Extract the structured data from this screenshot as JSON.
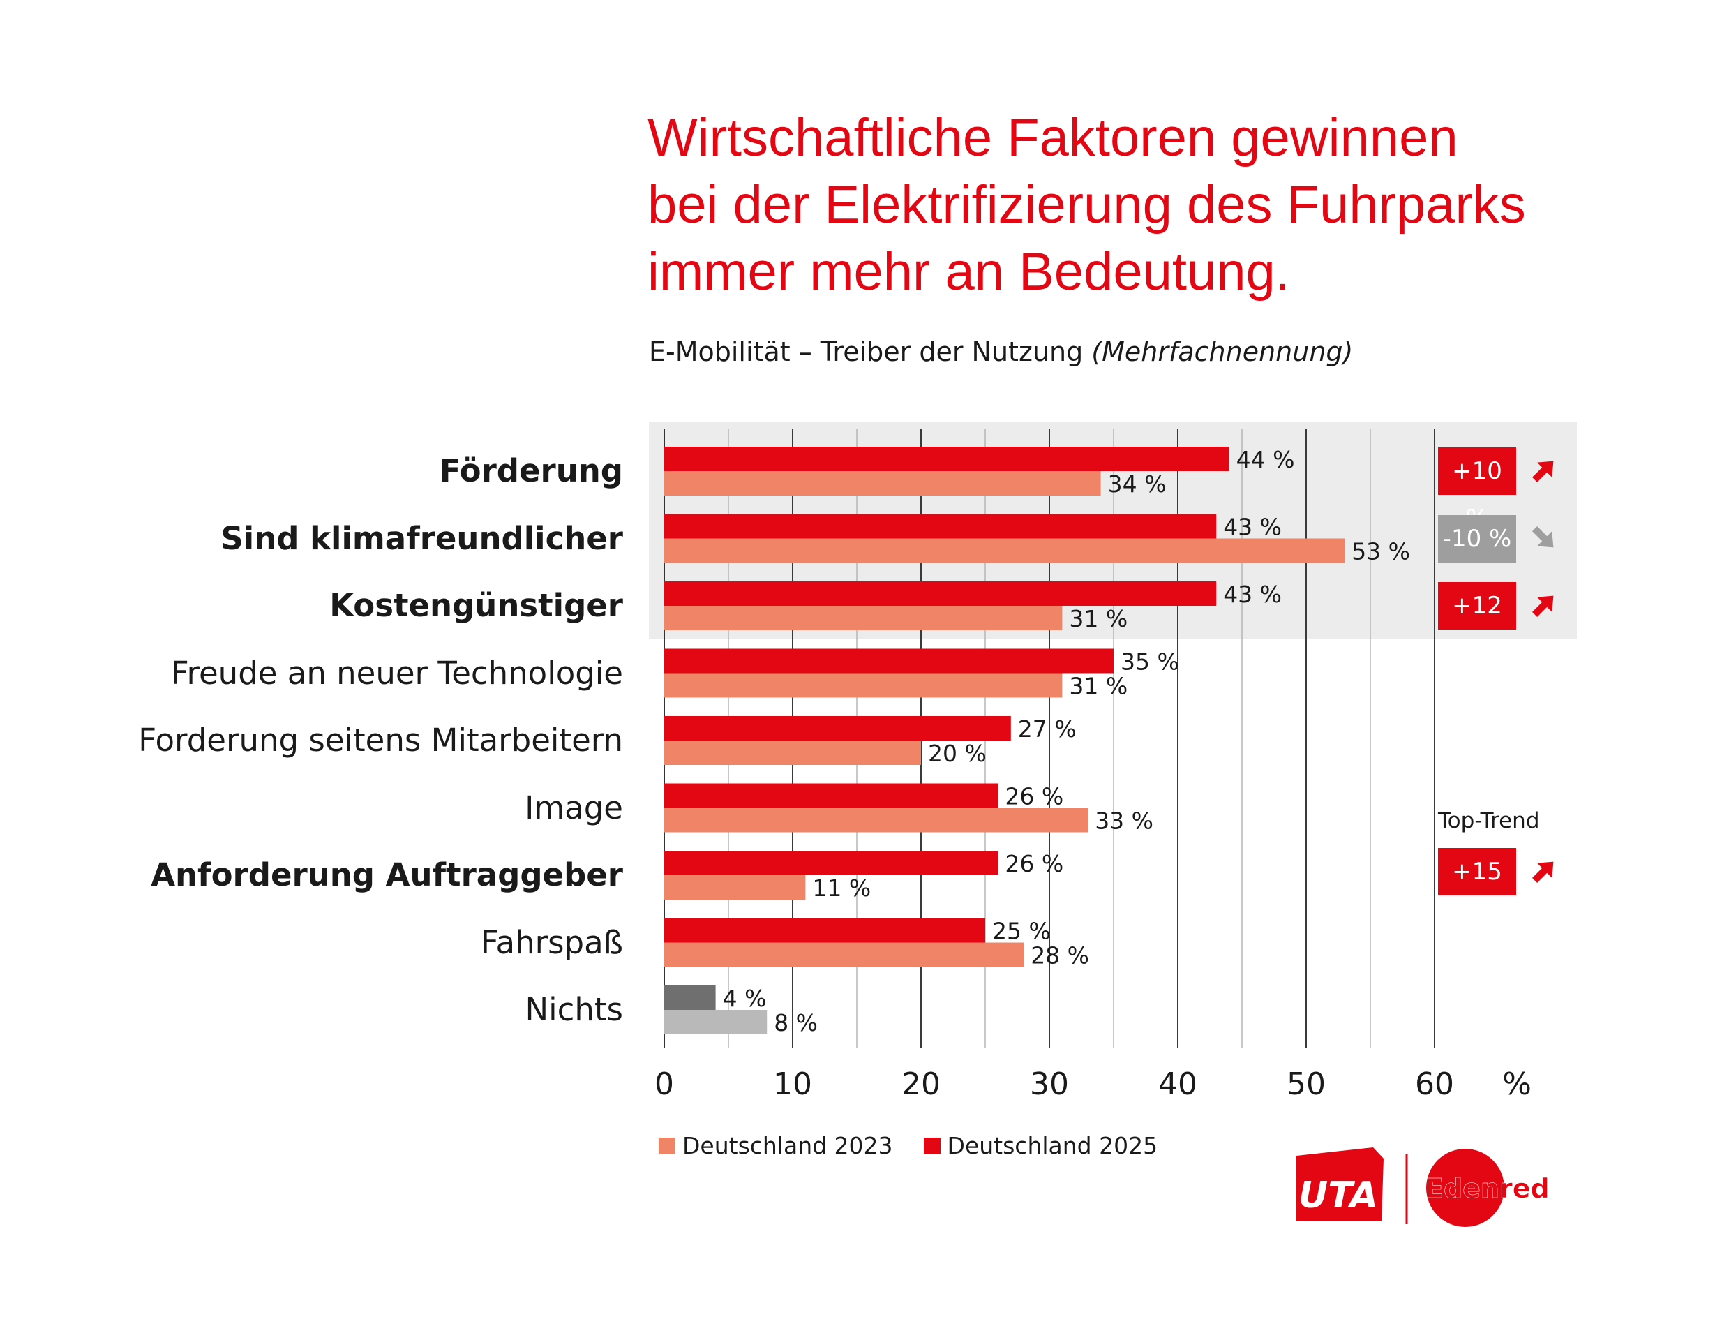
{
  "title_lines": [
    "Wirtschaftliche Faktoren gewinnen",
    "bei der Elektrifizierung des Fuhrparks",
    "immer mehr an Bedeutung."
  ],
  "subtitle": {
    "main": "E-Mobilität – Treiber der Nutzung ",
    "italic": "(Mehrfachnennung)"
  },
  "chart_data": {
    "type": "bar",
    "orientation": "horizontal",
    "categories": [
      "Förderung",
      "Sind klimafreundlicher",
      "Kostengünstiger",
      "Freude an neuer Technologie",
      "Forderung seitens Mitarbeitern",
      "Image",
      "Anforderung Auftraggeber",
      "Fahrspaß",
      "Nichts"
    ],
    "bold_categories": [
      "Förderung",
      "Sind klimafreundlicher",
      "Kostengünstiger",
      "Anforderung Auftraggeber"
    ],
    "highlighted_categories": [
      "Förderung",
      "Sind klimafreundlicher",
      "Kostengünstiger"
    ],
    "series": [
      {
        "name": "Deutschland 2025",
        "values": [
          44,
          43,
          43,
          35,
          27,
          26,
          26,
          25,
          4
        ],
        "color": "#e30613",
        "color_nichts": "#6f6f6f"
      },
      {
        "name": "Deutschland 2023",
        "values": [
          34,
          53,
          31,
          31,
          20,
          33,
          11,
          28,
          8
        ],
        "color": "#f08466",
        "color_nichts": "#b9b9b9"
      }
    ],
    "value_suffix": " %",
    "xlim": [
      0,
      60
    ],
    "xticks": [
      "0",
      "10",
      "20",
      "30",
      "40",
      "50",
      "60"
    ],
    "x_unit": "%",
    "grid": true,
    "legend_position": "bottom-left",
    "legend": [
      "Deutschland 2023",
      "Deutschland 2025"
    ]
  },
  "badges": [
    {
      "category": "Förderung",
      "text": "+10 %",
      "direction": "up",
      "color": "#e30613"
    },
    {
      "category": "Sind klimafreundlicher",
      "text": "-10 %",
      "direction": "down",
      "color": "#9e9e9e"
    },
    {
      "category": "Kostengünstiger",
      "text": "+12 %",
      "direction": "up",
      "color": "#e30613"
    }
  ],
  "top_trend": {
    "label": "Top-Trend",
    "text": "+15 %",
    "direction": "up",
    "color": "#e30613"
  },
  "colors": {
    "accent": "#e30613",
    "light": "#f08466",
    "highlight_bg": "#ececec",
    "grey_badge": "#9e9e9e"
  },
  "logos": {
    "uta": "UTA",
    "edenred": "Edenred"
  }
}
